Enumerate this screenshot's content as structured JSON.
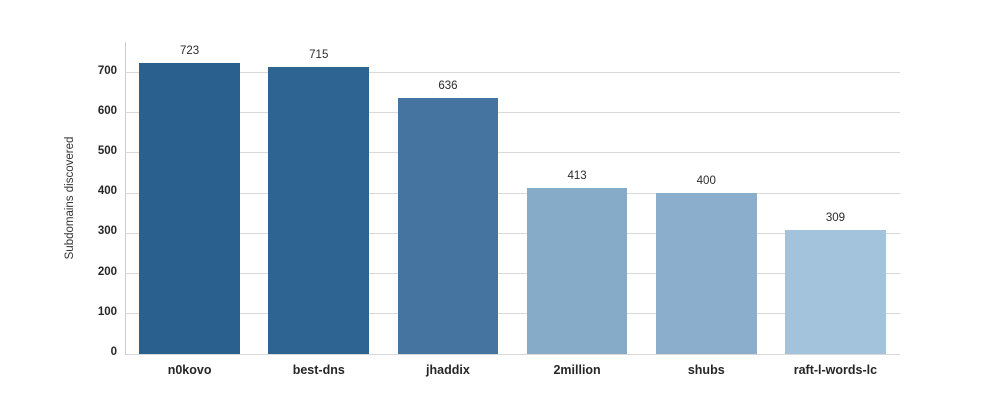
{
  "chart_data": {
    "type": "bar",
    "title": "",
    "xlabel": "",
    "ylabel": "Subdomains discovered",
    "categories": [
      "n0kovo",
      "best-dns",
      "jhaddix",
      "2million",
      "shubs",
      "raft-l-words-lc"
    ],
    "values": [
      723,
      715,
      636,
      413,
      400,
      309
    ],
    "value_labels": [
      "723",
      "715",
      "636",
      "413",
      "400",
      "309"
    ],
    "bar_colors": [
      "#2a608e",
      "#2d6492",
      "#44749f",
      "#85abc9",
      "#8aaecb",
      "#a3c3dc"
    ],
    "yticks": [
      0,
      100,
      200,
      300,
      400,
      500,
      600,
      700
    ],
    "ylim": [
      0,
      776
    ],
    "grid": "horizontal",
    "legend": "none"
  },
  "colors": {
    "grid": "#d9d9d9",
    "spine": "#cccccc",
    "background": "#ffffff"
  }
}
